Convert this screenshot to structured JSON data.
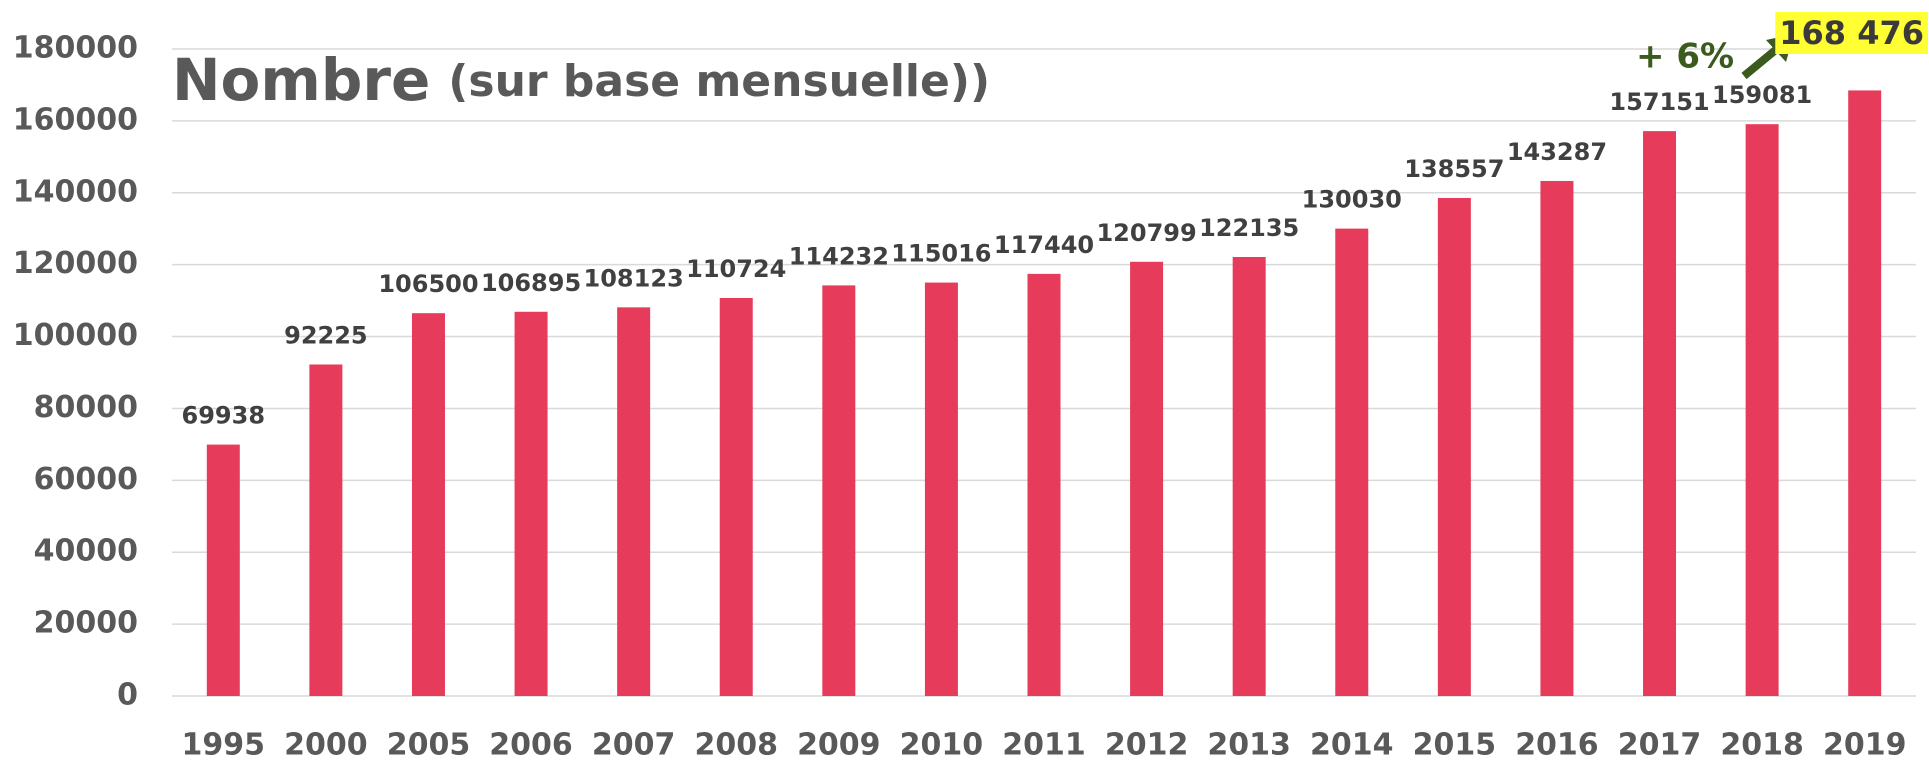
{
  "chart_data": {
    "type": "bar",
    "title": "Nombre",
    "subtitle": "(sur base mensuelle))",
    "annotation": "+ 6%",
    "categories": [
      "1995",
      "2000",
      "2005",
      "2006",
      "2007",
      "2008",
      "2009",
      "2010",
      "2011",
      "2012",
      "2013",
      "2014",
      "2015",
      "2016",
      "2017",
      "2018",
      "2019"
    ],
    "values": [
      69938,
      92225,
      106500,
      106895,
      108123,
      110724,
      114232,
      115016,
      117440,
      120799,
      122135,
      130030,
      138557,
      143287,
      157151,
      159081,
      168476
    ],
    "value_labels": [
      "69938",
      "92225",
      "106500",
      "106895",
      "108123",
      "110724",
      "114232",
      "115016",
      "117440",
      "120799",
      "122135",
      "130030",
      "138557",
      "143287",
      "157151",
      "159081",
      "168 476"
    ],
    "color": "#e63b5a",
    "highlight_color": "#ffff33",
    "ylim": [
      0,
      180000
    ],
    "yticks": [
      0,
      20000,
      40000,
      60000,
      80000,
      100000,
      120000,
      140000,
      160000,
      180000
    ],
    "grid": true
  }
}
